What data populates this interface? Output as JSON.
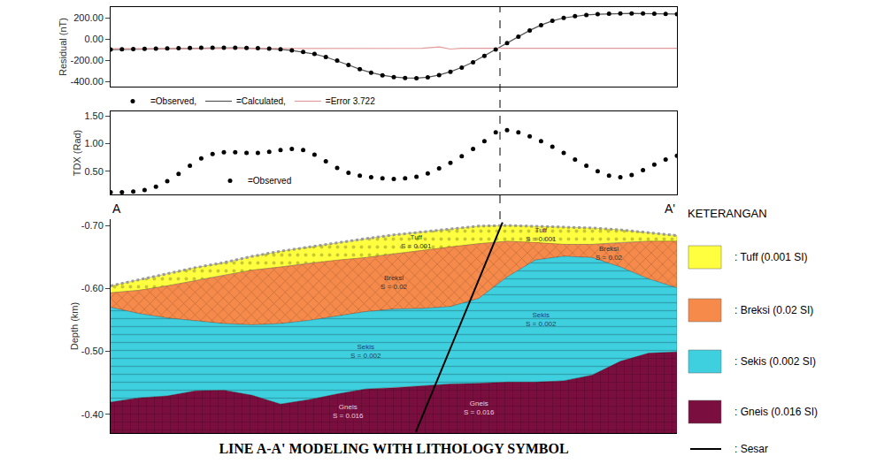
{
  "title": "LINE A-A' MODELING WITH LITHOLOGY SYMBOL",
  "chart_data": [
    {
      "type": "scatter",
      "ylabel": "Residual (nT)",
      "grid": false,
      "tick_labels": "y",
      "legend": "below",
      "x": [
        0,
        2,
        4,
        6,
        8,
        10,
        12,
        14,
        16,
        18,
        20,
        22,
        24,
        26,
        28,
        30,
        32,
        34,
        36,
        38,
        40,
        42,
        44,
        46,
        48,
        50,
        52,
        54,
        56,
        58,
        60,
        62,
        64,
        66,
        68,
        70,
        72,
        74,
        76,
        78,
        80,
        82,
        84,
        86,
        88,
        90,
        92,
        94,
        96,
        98,
        100
      ],
      "xlim": [
        0,
        100
      ],
      "ylim": [
        -450,
        300
      ],
      "yticks": [
        {
          "value": 200,
          "label": "200.00"
        },
        {
          "value": 0,
          "label": "0.00"
        },
        {
          "value": -200,
          "label": "-200.00"
        },
        {
          "value": -400,
          "label": "-400.00"
        }
      ],
      "dashed_line_x": 68.75,
      "series": [
        {
          "name": "=Observed,",
          "color": "#000000",
          "marker": "circle",
          "values": [
            -100,
            -98,
            -96,
            -94,
            -92,
            -90,
            -88,
            -86,
            -84,
            -83,
            -83,
            -84,
            -86,
            -88,
            -92,
            -98,
            -108,
            -122,
            -142,
            -170,
            -205,
            -245,
            -285,
            -318,
            -343,
            -360,
            -368,
            -370,
            -362,
            -342,
            -310,
            -270,
            -220,
            -160,
            -100,
            -40,
            20,
            80,
            130,
            170,
            198,
            215,
            226,
            233,
            237,
            239,
            240,
            239,
            238,
            236,
            234
          ]
        },
        {
          "name": "=Calculated,",
          "type": "line",
          "color": "#555555",
          "line_style": "solid",
          "values": [
            -101,
            -99,
            -97,
            -95,
            -93,
            -90,
            -88,
            -86,
            -84,
            -83,
            -83,
            -84,
            -86,
            -89,
            -93,
            -99,
            -109,
            -123,
            -143,
            -171,
            -206,
            -246,
            -286,
            -318,
            -343,
            -360,
            -367,
            -369,
            -361,
            -341,
            -309,
            -269,
            -219,
            -159,
            -99,
            -40,
            20,
            80,
            130,
            170,
            198,
            215,
            226,
            233,
            237,
            239,
            240,
            239,
            238,
            236,
            234
          ]
        },
        {
          "name": "=Error 3.722",
          "type": "line",
          "color": "#e39a9a",
          "line_style": "solid",
          "x": [
            0,
            10,
            20,
            30,
            40,
            50,
            55,
            58,
            60,
            62,
            66,
            70,
            80,
            90,
            100
          ],
          "values": [
            -92,
            -92,
            -91,
            -90,
            -90,
            -89,
            -89,
            -76,
            -96,
            -88,
            -88,
            -84,
            -88,
            -88,
            -88
          ]
        }
      ]
    },
    {
      "type": "scatter",
      "ylabel": "TDX (Rad)",
      "grid": false,
      "tick_labels": "y",
      "legend": "lower left",
      "x": [
        0,
        2,
        4,
        6,
        8,
        10,
        12,
        14,
        16,
        18,
        20,
        22,
        24,
        26,
        28,
        30,
        32,
        34,
        36,
        38,
        40,
        42,
        44,
        46,
        48,
        50,
        52,
        54,
        56,
        58,
        60,
        62,
        64,
        66,
        68,
        70,
        72,
        74,
        76,
        78,
        80,
        82,
        84,
        86,
        88,
        90,
        92,
        94,
        96,
        98,
        100
      ],
      "xlim": [
        0,
        100
      ],
      "ylim": [
        0.08,
        1.58
      ],
      "yticks": [
        {
          "value": 0.5,
          "label": "0.50"
        },
        {
          "value": 1,
          "label": "1.00"
        },
        {
          "value": 1.5,
          "label": "1.50"
        }
      ],
      "series": [
        {
          "name": "=Observed",
          "color": "#000000",
          "marker": "circle",
          "values": [
            0.12,
            0.12,
            0.13,
            0.16,
            0.22,
            0.32,
            0.45,
            0.6,
            0.73,
            0.81,
            0.84,
            0.84,
            0.83,
            0.83,
            0.85,
            0.88,
            0.9,
            0.88,
            0.8,
            0.68,
            0.56,
            0.47,
            0.42,
            0.39,
            0.37,
            0.36,
            0.37,
            0.4,
            0.46,
            0.55,
            0.65,
            0.77,
            0.9,
            1.04,
            1.2,
            1.24,
            1.2,
            1.13,
            1.04,
            0.94,
            0.83,
            0.71,
            0.6,
            0.5,
            0.42,
            0.39,
            0.43,
            0.52,
            0.62,
            0.71,
            0.78
          ]
        }
      ]
    },
    {
      "type": "section",
      "ylabel": "Depth (km)",
      "grid": false,
      "tick_labels": "y",
      "end_labels": [
        "A",
        "A'"
      ],
      "x": [
        0,
        5,
        10,
        15,
        20,
        25,
        30,
        35,
        40,
        45,
        50,
        55,
        60,
        65,
        70,
        75,
        80,
        85,
        90,
        95,
        100
      ],
      "xlim": [
        0,
        100
      ],
      "ylim": [
        -0.37,
        -0.71
      ],
      "yticks": [
        {
          "value": -0.7,
          "label": "-0.70"
        },
        {
          "value": -0.6,
          "label": "-0.60"
        },
        {
          "value": -0.5,
          "label": "-0.50"
        },
        {
          "value": -0.4,
          "label": "-0.40"
        }
      ],
      "layers": [
        {
          "name": "Tuff",
          "label": "S = 0.001",
          "legend_label": ": Tuff (0.001 SI)",
          "color": "#ffff40",
          "top": [
            -0.604,
            -0.614,
            -0.623,
            -0.633,
            -0.641,
            -0.651,
            -0.659,
            -0.666,
            -0.673,
            -0.679,
            -0.685,
            -0.69,
            -0.695,
            -0.699,
            -0.7,
            -0.699,
            -0.697,
            -0.696,
            -0.693,
            -0.689,
            -0.684
          ],
          "label_positions": [
            {
              "x": 54,
              "y": -0.674
            },
            {
              "x": 76,
              "y": -0.686
            }
          ]
        },
        {
          "name": "Breksi",
          "label": "S = 0.02",
          "legend_label": ": Breksi (0.02 SI)",
          "color": "#f58a4b",
          "top": [
            -0.593,
            -0.597,
            -0.604,
            -0.612,
            -0.621,
            -0.629,
            -0.634,
            -0.64,
            -0.645,
            -0.649,
            -0.655,
            -0.66,
            -0.666,
            -0.671,
            -0.675,
            -0.673,
            -0.67,
            -0.67,
            -0.673,
            -0.675,
            -0.675
          ],
          "label_positions": [
            {
              "x": 50,
              "y": -0.61
            },
            {
              "x": 88,
              "y": -0.656
            }
          ]
        },
        {
          "name": "Sekis",
          "label": "S = 0.002",
          "legend_label": ": Sekis (0.002 SI)",
          "color": "#3fd0e0",
          "top": [
            -0.57,
            -0.56,
            -0.553,
            -0.548,
            -0.544,
            -0.542,
            -0.544,
            -0.549,
            -0.556,
            -0.563,
            -0.567,
            -0.568,
            -0.571,
            -0.584,
            -0.618,
            -0.645,
            -0.651,
            -0.649,
            -0.634,
            -0.615,
            -0.601
          ],
          "label_positions": [
            {
              "x": 45,
              "y": -0.5
            },
            {
              "x": 76,
              "y": -0.55
            }
          ]
        },
        {
          "name": "Gneis",
          "label": "S = 0.016",
          "legend_label": ": Gneis (0.016 SI)",
          "color": "#7a0f3f",
          "top": [
            -0.419,
            -0.426,
            -0.429,
            -0.437,
            -0.438,
            -0.43,
            -0.416,
            -0.423,
            -0.432,
            -0.44,
            -0.442,
            -0.445,
            -0.448,
            -0.449,
            -0.451,
            -0.451,
            -0.453,
            -0.462,
            -0.484,
            -0.497,
            -0.499
          ],
          "label_positions": [
            {
              "x": 42,
              "y": -0.405
            },
            {
              "x": 65,
              "y": -0.41
            }
          ]
        }
      ],
      "fault": {
        "label": ": Sesar",
        "color": "#000000",
        "x": [
          69.2,
          53.9
        ],
        "y": [
          -0.705,
          -0.372
        ]
      }
    }
  ],
  "legend_box": {
    "title": "KETERANGAN"
  }
}
